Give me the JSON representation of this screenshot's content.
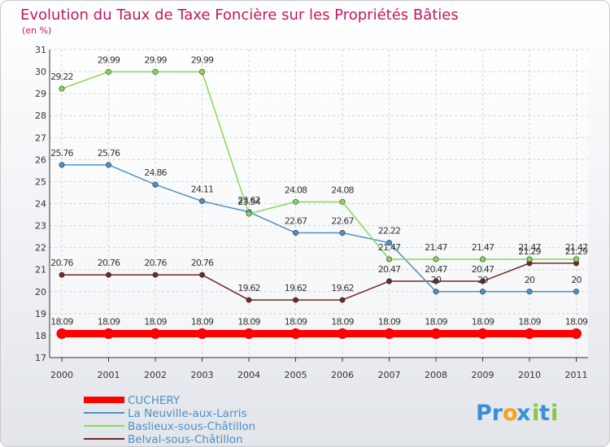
{
  "chart_data": {
    "type": "line",
    "title": "Evolution du Taux de Taxe Foncière sur les Propriétés Bâties",
    "subtitle": "(en %)",
    "x": [
      "2000",
      "2001",
      "2002",
      "2003",
      "2004",
      "2005",
      "2006",
      "2007",
      "2008",
      "2009",
      "2010",
      "2011"
    ],
    "ylim": [
      17,
      31
    ],
    "yticks": [
      17,
      18,
      19,
      20,
      21,
      22,
      23,
      24,
      25,
      26,
      27,
      28,
      29,
      30,
      31
    ],
    "grid": true,
    "legend_position": "bottom-left",
    "series": [
      {
        "name": "CUCHERY",
        "color": "#ff0000",
        "values": [
          18.09,
          18.09,
          18.09,
          18.09,
          18.09,
          18.09,
          18.09,
          18.09,
          18.09,
          18.09,
          18.09,
          18.09
        ],
        "labels": [
          "18.09",
          "18.09",
          "18.09",
          "18.09",
          "18.09",
          "18.09",
          "18.09",
          "18.09",
          "18.09",
          "18.09",
          "18.09",
          "18.09"
        ]
      },
      {
        "name": "La Neuville-aux-Larris",
        "color": "#4f90c8",
        "values": [
          25.76,
          25.76,
          24.86,
          24.11,
          23.62,
          22.67,
          22.67,
          22.22,
          20,
          20,
          20,
          20
        ],
        "labels": [
          "25.76",
          "25.76",
          "24.86",
          "24.11",
          "23.62",
          "22.67",
          "22.67",
          "22.22",
          "20",
          "20",
          "20",
          "20"
        ]
      },
      {
        "name": "Baslieux-sous-Châtillon",
        "color": "#88d65a",
        "values": [
          29.22,
          29.99,
          29.99,
          29.99,
          23.54,
          24.08,
          24.08,
          21.47,
          21.47,
          21.47,
          21.47,
          21.47
        ],
        "labels": [
          "29.22",
          "29.99",
          "29.99",
          "29.99",
          "23.54",
          "24.08",
          "24.08",
          "21.47",
          "21.47",
          "21.47",
          "21.47",
          "21.47"
        ]
      },
      {
        "name": "Belval-sous-Châtillon",
        "color": "#6e2a24",
        "values": [
          20.76,
          20.76,
          20.76,
          20.76,
          19.62,
          19.62,
          19.62,
          20.47,
          20.47,
          20.47,
          21.29,
          21.29
        ],
        "labels": [
          "20.76",
          "20.76",
          "20.76",
          "20.76",
          "19.62",
          "19.62",
          "19.62",
          "20.47",
          "20.47",
          "20.47",
          "21.29",
          "21.29"
        ]
      }
    ]
  },
  "brand": {
    "prefix": "Pr",
    "o": "o",
    "x": "x",
    "i": "i",
    "t": "t",
    "i2": "i"
  }
}
